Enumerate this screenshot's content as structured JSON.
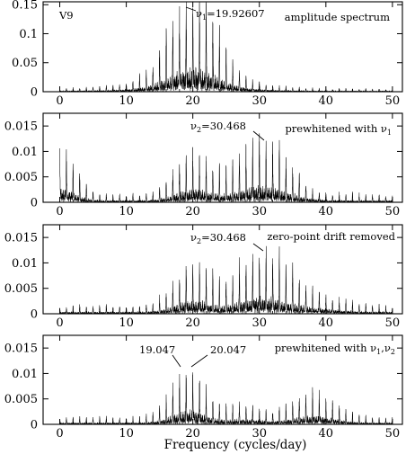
{
  "figure": {
    "xlabel": "Frequency (cycles/day)"
  },
  "chart_data": [
    {
      "type": "line",
      "xlim": [
        -2.5,
        51.5
      ],
      "ylim": [
        0,
        0.155
      ],
      "x_ticks": [
        "0",
        "10",
        "20",
        "30",
        "40",
        "50"
      ],
      "y_ticks": [
        "0",
        "0.05",
        "0.1",
        "0.15"
      ],
      "labels": {
        "star": "V9",
        "title": "amplitude spectrum",
        "nu": "ν",
        "sub": "1",
        "value": "=19.92607"
      },
      "peaks": [
        {
          "center": 20.0,
          "width": 3.3,
          "height": 0.145
        },
        {
          "center": 20.0,
          "width": 7.0,
          "height": 0.035
        }
      ],
      "base": 0.005
    },
    {
      "type": "line",
      "xlim": [
        -2.5,
        51.5
      ],
      "ylim": [
        0,
        0.0175
      ],
      "x_ticks": [
        "0",
        "10",
        "20",
        "30",
        "40",
        "50"
      ],
      "y_ticks": [
        "0",
        "0.005",
        "0.01",
        "0.015"
      ],
      "labels": {
        "title_a": "prewhitened with ",
        "nu_t": "ν",
        "sub_t": "1",
        "nu": "ν",
        "sub": "2",
        "value": "=30.468"
      },
      "peaks": [
        {
          "center": 30.4,
          "width": 3.7,
          "height": 0.0128
        },
        {
          "center": 20.0,
          "width": 2.6,
          "height": 0.0095
        },
        {
          "center": 0.0,
          "width": 2.2,
          "height": 0.011
        }
      ],
      "base": 0.0016
    },
    {
      "type": "line",
      "xlim": [
        -2.5,
        51.5
      ],
      "ylim": [
        0,
        0.0175
      ],
      "x_ticks": [
        "0",
        "10",
        "20",
        "30",
        "40",
        "50"
      ],
      "y_ticks": [
        "0",
        "0.005",
        "0.01",
        "0.015"
      ],
      "labels": {
        "nu": "ν",
        "sub": "2",
        "value": "=30.468",
        "title": "zero-point drift removed"
      },
      "peaks": [
        {
          "center": 30.4,
          "width": 3.7,
          "height": 0.0126
        },
        {
          "center": 20.0,
          "width": 2.6,
          "height": 0.0098
        },
        {
          "center": 38.0,
          "width": 4.0,
          "height": 0.0025
        }
      ],
      "base": 0.0016
    },
    {
      "type": "line",
      "xlim": [
        -2.5,
        51.5
      ],
      "ylim": [
        0,
        0.0175
      ],
      "x_ticks": [
        "0",
        "10",
        "20",
        "30",
        "40",
        "50"
      ],
      "y_ticks": [
        "0",
        "0.005",
        "0.01",
        "0.015"
      ],
      "labels": {
        "left_peak": "19.047",
        "right_peak": "20.047",
        "title_a": "prewhitened with ",
        "nu1": "ν",
        "sub1": "1",
        "comma": ",",
        "nu2": "ν",
        "sub2": "2"
      },
      "peaks": [
        {
          "center": 19.5,
          "width": 2.5,
          "height": 0.0105
        },
        {
          "center": 38.0,
          "width": 3.2,
          "height": 0.0058
        },
        {
          "center": 27.5,
          "width": 2.5,
          "height": 0.003
        }
      ],
      "base": 0.0014
    }
  ]
}
